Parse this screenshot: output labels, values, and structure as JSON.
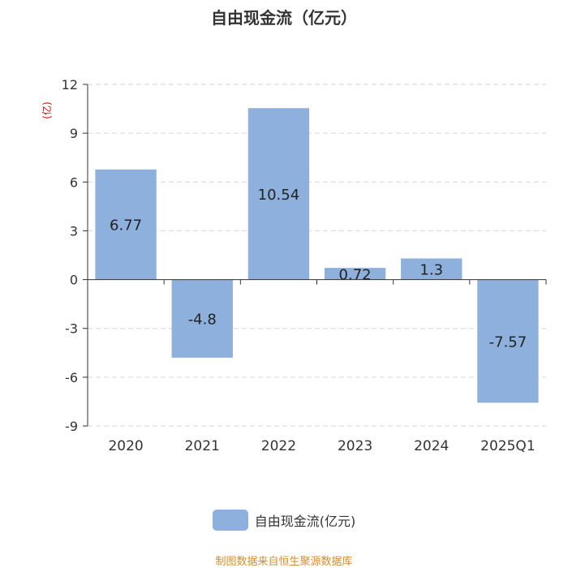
{
  "chart_data": {
    "type": "bar",
    "title": "自由现金流（亿元）",
    "ylabel": "(亿)",
    "categories": [
      "2020",
      "2021",
      "2022",
      "2023",
      "2024",
      "2025Q1"
    ],
    "series": [
      {
        "name": "自由现金流(亿元)",
        "values": [
          6.77,
          -4.8,
          10.54,
          0.72,
          1.3,
          -7.57
        ]
      }
    ],
    "data_labels": [
      "6.77",
      "-4.8",
      "10.54",
      "0.72",
      "1.3",
      "-7.57"
    ],
    "ylim": [
      -9,
      12
    ],
    "yticks": [
      12,
      9,
      6,
      3,
      0,
      -3,
      -6,
      -9
    ],
    "grid": true,
    "legend": "bottom-center",
    "bar_color": "#8eb0dc",
    "ylabel_color": "#e60000"
  },
  "source": "制图数据来自恒生聚源数据库"
}
